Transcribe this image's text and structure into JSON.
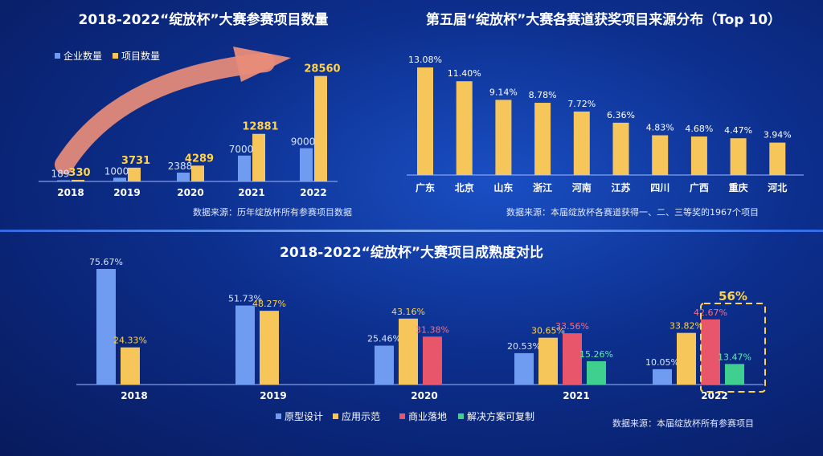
{
  "colors": {
    "blue": "#6f9cf0",
    "yellow": "#f6c65b",
    "red": "#e8566b",
    "green": "#3fcf8e",
    "label_yellow": "#ffd34d",
    "label_blue": "#d8e4ff",
    "label_red": "#ff6b7e",
    "label_green": "#5bf0a8",
    "arrow": "#e98c7a",
    "highlight": "#ffd34d"
  },
  "chart_data": [
    {
      "type": "bar",
      "title": "2018-2022“绽放杯”大赛参赛项目数量",
      "categories": [
        "2018",
        "2019",
        "2020",
        "2021",
        "2022"
      ],
      "series": [
        {
          "name": "企业数量",
          "values": [
            189,
            1000,
            2388,
            7000,
            9000
          ]
        },
        {
          "name": "项目数量",
          "values": [
            330,
            3731,
            4289,
            12881,
            28560
          ]
        }
      ],
      "ylim": [
        0,
        30000
      ],
      "legend": "top-left",
      "source": "数据来源：历年绽放杯所有参赛项目数据"
    },
    {
      "type": "bar",
      "title": "第五届“绽放杯”大赛各赛道获奖项目来源分布（Top 10）",
      "categories": [
        "广东",
        "北京",
        "山东",
        "浙江",
        "河南",
        "江苏",
        "四川",
        "广西",
        "重庆",
        "河北"
      ],
      "values": [
        13.08,
        11.4,
        9.14,
        8.78,
        7.72,
        6.36,
        4.83,
        4.68,
        4.47,
        3.94
      ],
      "labels": [
        "13.08%",
        "11.40%",
        "9.14%",
        "8.78%",
        "7.72%",
        "6.36%",
        "4.83%",
        "4.68%",
        "4.47%",
        "3.94%"
      ],
      "ylim": [
        0,
        14
      ],
      "source": "数据来源：本届绽放杯各赛道获得一、二、三等奖的1967个项目"
    },
    {
      "type": "bar",
      "title": "2018-2022“绽放杯”大赛项目成熟度对比",
      "categories": [
        "2018",
        "2019",
        "2020",
        "2021",
        "2022"
      ],
      "series": [
        {
          "name": "原型设计",
          "values": [
            75.67,
            51.73,
            25.46,
            20.53,
            10.05
          ]
        },
        {
          "name": "应用示范",
          "values": [
            24.33,
            48.27,
            43.16,
            30.65,
            33.82
          ]
        },
        {
          "name": "商业落地",
          "values": [
            null,
            null,
            31.38,
            33.56,
            42.67
          ]
        },
        {
          "name": "解决方案可复制",
          "values": [
            null,
            null,
            null,
            15.26,
            13.47
          ]
        }
      ],
      "ylim": [
        0,
        80
      ],
      "legend": "bottom",
      "highlight": {
        "category": "2022",
        "label": "56%"
      },
      "source": "数据来源：本届绽放杯所有参赛项目"
    }
  ]
}
